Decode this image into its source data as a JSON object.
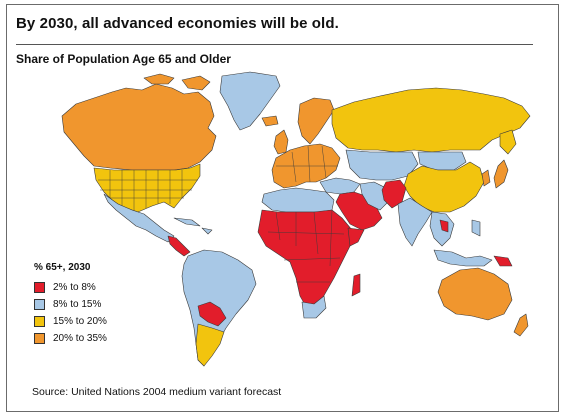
{
  "title": "By 2030, all advanced economies will be old.",
  "subtitle": "Share of Population Age 65 and Older",
  "legend": {
    "title": "% 65+, 2030",
    "items": [
      {
        "label": "2% to 8%",
        "color": "#e21d2b"
      },
      {
        "label": "8% to 15%",
        "color": "#a8c8e6"
      },
      {
        "label": "15% to 20%",
        "color": "#f2c40e"
      },
      {
        "label": "20% to 35%",
        "color": "#f0962e"
      }
    ]
  },
  "source": "Source: United Nations 2004 medium variant forecast",
  "colors": {
    "red": "#e21d2b",
    "blue": "#a8c8e6",
    "yellow": "#f2c40e",
    "orange": "#f0962e"
  }
}
